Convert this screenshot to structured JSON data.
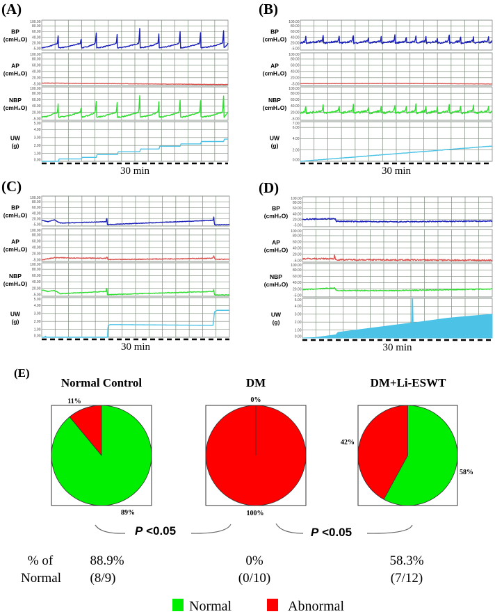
{
  "chart_data": [
    {
      "type": "line",
      "panel_label": "(A)",
      "xlabel": "30 min",
      "x_range_min": [
        0,
        30
      ],
      "channels": [
        {
          "label": "BP",
          "unit": "(cmH₂O)",
          "color": "#1a1fb8",
          "ylim": [
            -5,
            100
          ],
          "ticks": [
            "100.00",
            "80.00",
            "60.00",
            "40.00",
            "20.00",
            "-5.00"
          ],
          "voids": [
            [
              2.7,
              58
            ],
            [
              6.4,
              38
            ],
            [
              8.8,
              57
            ],
            [
              12.2,
              62
            ],
            [
              15.8,
              75
            ],
            [
              18.9,
              62
            ],
            [
              22.3,
              62
            ],
            [
              25.6,
              62
            ],
            [
              29.3,
              68
            ]
          ],
          "baseline": [
            3,
            20
          ],
          "noise": 1.5
        },
        {
          "label": "AP",
          "unit": "(cmH₂O)",
          "color": "#d9534f",
          "ylim": [
            -5,
            100
          ],
          "ticks": [
            "100.00",
            "80.00",
            "60.00",
            "40.00",
            "20.00",
            "-5.00"
          ],
          "keypoints": [
            [
              0,
              3
            ],
            [
              30,
              -2
            ]
          ],
          "noise": 0.6
        },
        {
          "label": "NBP",
          "unit": "(cmH₂O)",
          "color": "#33dd33",
          "ylim": [
            -5,
            100
          ],
          "ticks": [
            "100.00",
            "80.00",
            "60.00",
            "40.00",
            "20.00",
            "-5.00"
          ],
          "voids": [
            [
              2.7,
              58
            ],
            [
              6.4,
              38
            ],
            [
              8.8,
              57
            ],
            [
              12.2,
              63
            ],
            [
              15.8,
              77
            ],
            [
              18.9,
              62
            ],
            [
              22.3,
              62
            ],
            [
              25.6,
              62
            ],
            [
              29.3,
              75
            ]
          ],
          "baseline": [
            5,
            22
          ],
          "noise": 1.8
        },
        {
          "label": "UW",
          "unit": "(g)",
          "color": "#4cc3e6",
          "ylim": [
            0,
            5
          ],
          "ticks": [
            "5.00",
            "4.00",
            "3.00",
            "2.00",
            "1.00",
            "0.00"
          ],
          "keypoints": [
            [
              0,
              0
            ],
            [
              2.7,
              0
            ],
            [
              2.8,
              0.3
            ],
            [
              6.4,
              0.3
            ],
            [
              6.5,
              0.5
            ],
            [
              8.8,
              0.5
            ],
            [
              8.9,
              0.85
            ],
            [
              12.2,
              0.85
            ],
            [
              12.3,
              1.2
            ],
            [
              15.8,
              1.2
            ],
            [
              15.9,
              1.55
            ],
            [
              18.9,
              1.55
            ],
            [
              19,
              1.9
            ],
            [
              22.3,
              1.9
            ],
            [
              22.4,
              2.2
            ],
            [
              25.6,
              2.2
            ],
            [
              25.7,
              2.5
            ],
            [
              29.3,
              2.5
            ],
            [
              29.4,
              2.8
            ],
            [
              30,
              2.8
            ]
          ],
          "noise": 0
        }
      ]
    },
    {
      "type": "line",
      "panel_label": "(B)",
      "xlabel": "30 min",
      "x_range_min": [
        0,
        30
      ],
      "channels": [
        {
          "label": "BP",
          "unit": "(cmH₂O)",
          "color": "#1a1fb8",
          "ylim": [
            -5,
            100
          ],
          "ticks": [
            "100.00",
            "80.00",
            "60.00",
            "40.00",
            "20.00",
            "-5.00"
          ],
          "voids": [
            [
              0.9,
              48
            ],
            [
              3.6,
              48
            ],
            [
              6.1,
              45
            ],
            [
              8.3,
              47
            ],
            [
              10.7,
              45
            ],
            [
              12.7,
              48
            ],
            [
              14.8,
              48
            ],
            [
              16.6,
              42
            ],
            [
              18.1,
              48
            ],
            [
              19.7,
              48
            ],
            [
              21.5,
              45
            ],
            [
              23.3,
              50
            ],
            [
              25.1,
              46
            ],
            [
              27.1,
              45
            ],
            [
              29.5,
              47
            ]
          ],
          "baseline": [
            20,
            28
          ],
          "noise": 3
        },
        {
          "label": "AP",
          "unit": "(cmH₂O)",
          "color": "#d9534f",
          "ylim": [
            -5,
            100
          ],
          "ticks": [
            "100.00",
            "80.00",
            "60.00",
            "40.00",
            "20.00",
            "-5.00"
          ],
          "keypoints": [
            [
              0,
              1
            ],
            [
              15,
              2
            ],
            [
              30,
              0
            ]
          ],
          "noise": 0.5
        },
        {
          "label": "NBP",
          "unit": "(cmH₂O)",
          "color": "#33dd33",
          "ylim": [
            -5,
            100
          ],
          "ticks": [
            "100.00",
            "80.00",
            "60.00",
            "40.00",
            "20.00",
            "-5.00"
          ],
          "voids": [
            [
              0.9,
              45
            ],
            [
              3.6,
              45
            ],
            [
              6.1,
              43
            ],
            [
              8.3,
              45
            ],
            [
              10.7,
              43
            ],
            [
              12.7,
              45
            ],
            [
              14.8,
              45
            ],
            [
              16.6,
              40
            ],
            [
              18.1,
              48
            ],
            [
              19.7,
              46
            ],
            [
              21.5,
              44
            ],
            [
              23.3,
              48
            ],
            [
              25.1,
              44
            ],
            [
              27.1,
              43
            ],
            [
              29.5,
              45
            ]
          ],
          "baseline": [
            18,
            26
          ],
          "noise": 3
        },
        {
          "label": "UW",
          "unit": "(g)",
          "color": "#4cc3e6",
          "ylim": [
            0,
            7
          ],
          "ticks": [
            "7.00",
            "6.00",
            "4.00",
            "2.00",
            "0.00"
          ],
          "keypoints": [
            [
              0,
              0
            ],
            [
              30,
              2.7
            ]
          ],
          "noise": 0.03
        }
      ]
    },
    {
      "type": "line",
      "panel_label": "(C)",
      "xlabel": "30 min",
      "x_range_min": [
        0,
        30
      ],
      "channels": [
        {
          "label": "BP",
          "unit": "(cmH₂O)",
          "color": "#1a1fb8",
          "ylim": [
            -5,
            100
          ],
          "ticks": [
            "100.00",
            "80.00",
            "60.00",
            "40.00",
            "20.00",
            "-5.00"
          ],
          "keypoints": [
            [
              0,
              15
            ],
            [
              1,
              10
            ],
            [
              2,
              17
            ],
            [
              3,
              5
            ],
            [
              10.3,
              10
            ],
            [
              10.4,
              28
            ],
            [
              10.5,
              0
            ],
            [
              27.4,
              15
            ],
            [
              27.5,
              26
            ],
            [
              27.6,
              -1
            ],
            [
              30,
              0
            ]
          ],
          "noise": 1
        },
        {
          "label": "AP",
          "unit": "(cmH₂O)",
          "color": "#d9534f",
          "ylim": [
            -5,
            100
          ],
          "ticks": [
            "100.00",
            "80.00",
            "60.00",
            "40.00",
            "20.00",
            "-5.00"
          ],
          "keypoints": [
            [
              0,
              0
            ],
            [
              2,
              7
            ],
            [
              10.3,
              5
            ],
            [
              10.4,
              10
            ],
            [
              10.6,
              1
            ],
            [
              27.3,
              5
            ],
            [
              27.5,
              12
            ],
            [
              27.7,
              2
            ],
            [
              30,
              2
            ]
          ],
          "noise": 1.2
        },
        {
          "label": "NBP",
          "unit": "(cmH₂O)",
          "color": "#33dd33",
          "ylim": [
            -5,
            100
          ],
          "ticks": [
            "100.00",
            "80.00",
            "60.00",
            "40.00",
            "20.00",
            "-5.00"
          ],
          "keypoints": [
            [
              0,
              15
            ],
            [
              1,
              10
            ],
            [
              2,
              13
            ],
            [
              3,
              3
            ],
            [
              10.3,
              10
            ],
            [
              10.4,
              26
            ],
            [
              10.5,
              0
            ],
            [
              27.4,
              10
            ],
            [
              27.5,
              16
            ],
            [
              27.6,
              -1
            ],
            [
              30,
              -1
            ]
          ],
          "noise": 1
        },
        {
          "label": "UW",
          "unit": "(g)",
          "color": "#4cc3e6",
          "ylim": [
            0,
            5
          ],
          "ticks": [
            "5.00",
            "4.00",
            "3.00",
            "2.00",
            "1.00",
            "0.00"
          ],
          "keypoints": [
            [
              0,
              0
            ],
            [
              0.5,
              0
            ],
            [
              0.6,
              0.2
            ],
            [
              0.7,
              0
            ],
            [
              10.5,
              0
            ],
            [
              10.6,
              1.5
            ],
            [
              11,
              1.6
            ],
            [
              27.4,
              1.5
            ],
            [
              27.6,
              3.2
            ],
            [
              28,
              3.4
            ],
            [
              30,
              3.4
            ]
          ],
          "noise": 0
        }
      ]
    },
    {
      "type": "area",
      "panel_label": "(D)",
      "xlabel": "30 min",
      "x_range_min": [
        0,
        30
      ],
      "channels": [
        {
          "label": "BP",
          "unit": "(cmH₂O)",
          "color": "#1a1fb8",
          "ylim": [
            -5,
            100
          ],
          "ticks": [
            "100.00",
            "80.00",
            "60.00",
            "40.00",
            "20.00",
            "-5.00"
          ],
          "keypoints": [
            [
              0,
              21
            ],
            [
              5.2,
              23
            ],
            [
              5.3,
              14
            ],
            [
              15,
              12
            ],
            [
              30,
              15
            ]
          ],
          "noise": 2
        },
        {
          "label": "AP",
          "unit": "(cmH₂O)",
          "color": "#d9534f",
          "ylim": [
            -5,
            100
          ],
          "ticks": [
            "100.00",
            "80.00",
            "60.00",
            "40.00",
            "20.00",
            "-5.00"
          ],
          "keypoints": [
            [
              0,
              6
            ],
            [
              5,
              6
            ],
            [
              5.1,
              22
            ],
            [
              5.2,
              3
            ],
            [
              30,
              1
            ]
          ],
          "noise": 2.2
        },
        {
          "label": "NBP",
          "unit": "(cmH₂O)",
          "color": "#33dd33",
          "ylim": [
            -5,
            100
          ],
          "ticks": [
            "100.00",
            "80.00",
            "60.00",
            "40.00",
            "20.00",
            "-5.00"
          ],
          "keypoints": [
            [
              0,
              18
            ],
            [
              5.2,
              23
            ],
            [
              5.3,
              15
            ],
            [
              15,
              15
            ],
            [
              30,
              20
            ]
          ],
          "noise": 1.5
        },
        {
          "label": "UW",
          "unit": "(g)",
          "color": "#4cc3e6",
          "ylim": [
            0,
            5
          ],
          "ticks": [
            "5.00",
            "4.00",
            "3.00",
            "2.00",
            "1.00",
            "0.00"
          ],
          "keypoints": [
            [
              0,
              0
            ],
            [
              2,
              0.05
            ],
            [
              5.3,
              0.4
            ],
            [
              5.6,
              0.7
            ],
            [
              17.3,
              1.9
            ],
            [
              17.35,
              5
            ],
            [
              17.45,
              5
            ],
            [
              17.5,
              1.9
            ],
            [
              23,
              2.5
            ],
            [
              30,
              3
            ]
          ],
          "noise": 0,
          "filled": true
        }
      ]
    },
    {
      "type": "pie",
      "panel_label": "(E)",
      "legend": [
        {
          "label": "Normal",
          "color": "#00ee00"
        },
        {
          "label": "Abnormal",
          "color": "#ff0000"
        }
      ],
      "groups": [
        {
          "title": "Normal Control",
          "normal_pct": 89,
          "abnormal_pct": 11,
          "normal_label": "89%",
          "abnormal_label": "11%",
          "summary_pct": "88.9%",
          "summary_count": "(8/9)"
        },
        {
          "title": "DM",
          "normal_pct": 0,
          "abnormal_pct": 100,
          "normal_label": "0%",
          "abnormal_label": "100%",
          "summary_pct": "0%",
          "summary_count": "(0/10)"
        },
        {
          "title": "DM+Li-ESWT",
          "normal_pct": 58,
          "abnormal_pct": 42,
          "normal_label": "58%",
          "abnormal_label": "42%",
          "summary_pct": "58.3%",
          "summary_count": "(7/12)"
        }
      ],
      "comparisons": [
        {
          "p_letter": "P",
          "p_text": " <0.05"
        },
        {
          "p_letter": "P",
          "p_text": " <0.05"
        }
      ],
      "row_label_1": "% of",
      "row_label_2": "Normal"
    }
  ]
}
